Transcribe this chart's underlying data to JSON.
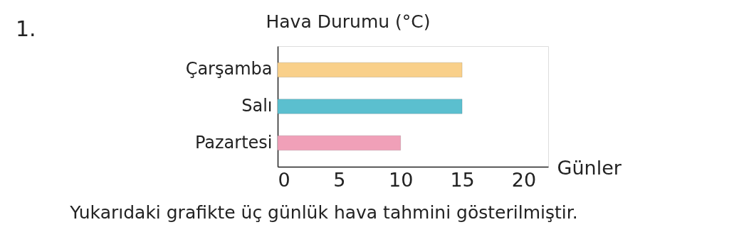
{
  "chart_data": {
    "type": "bar",
    "orientation": "horizontal",
    "title": "Hava Durumu (°C)",
    "xlabel": "Günler",
    "categories": [
      "Çarşamba",
      "Salı",
      "Pazartesi"
    ],
    "values": [
      15,
      15,
      10
    ],
    "colors": [
      "#f9d08a",
      "#5bbfcf",
      "#f0a0b8"
    ],
    "xlim": [
      0,
      22
    ],
    "xticks": [
      0,
      5,
      10,
      15,
      20
    ],
    "annotations": [
      "1.",
      "Yukarıdaki grafikte üç günlük hava tahmini gösterilmiştir."
    ]
  }
}
